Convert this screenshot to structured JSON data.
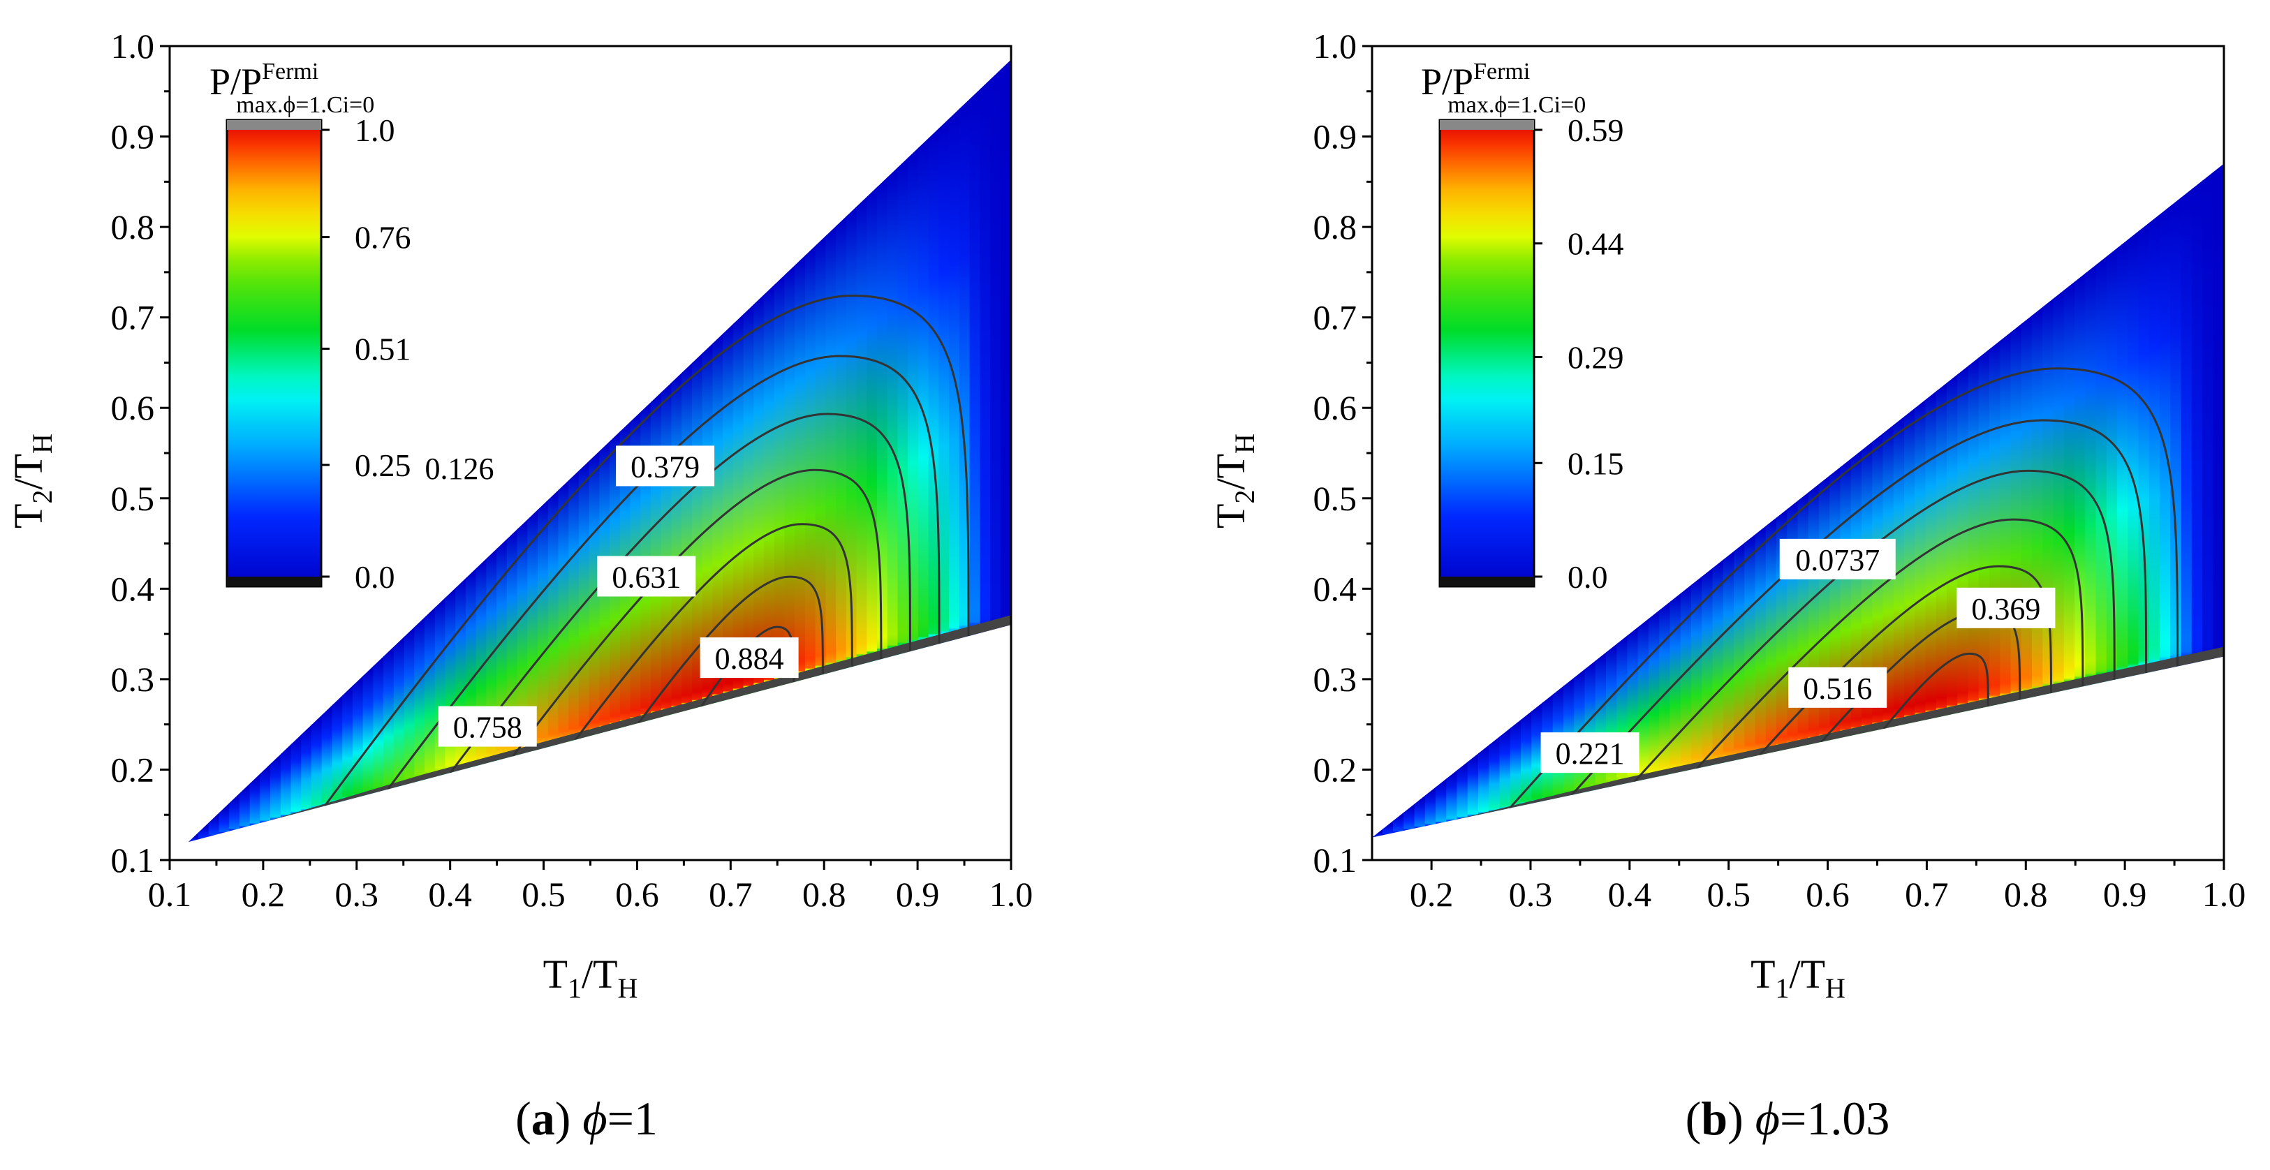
{
  "chart_data": [
    {
      "type": "heatmap",
      "panel_letter": "a",
      "caption_symbol": "ϕ",
      "caption_value": "=1",
      "phi": 1,
      "xlabel": "T1/TH",
      "xlabel_main": "T",
      "xlabel_sub1": "1",
      "xlabel_slash": "/T",
      "xlabel_sub2": "H",
      "ylabel": "T2/TH",
      "ylabel_main": "T",
      "ylabel_sub1": "2",
      "ylabel_slash": "/T",
      "ylabel_sub2": "H",
      "xlim": [
        0.1,
        1.0
      ],
      "ylim": [
        0.1,
        1.0
      ],
      "xticks": [
        "0.1",
        "0.2",
        "0.3",
        "0.4",
        "0.5",
        "0.6",
        "0.7",
        "0.8",
        "0.9",
        "1.0"
      ],
      "yticks": [
        "0.1",
        "0.2",
        "0.3",
        "0.4",
        "0.5",
        "0.6",
        "0.7",
        "0.8",
        "0.9",
        "1.0"
      ],
      "domain": {
        "upper_end_y": 0.985,
        "lower_start": [
          0.12,
          0.12
        ],
        "lower_end_y": 0.36
      },
      "peak": [
        0.71,
        0.3
      ],
      "colorbar": {
        "title_main": "P/P",
        "title_sup": "Fermi",
        "title_sub": "max.ϕ=1.Ci=0",
        "min": 0.0,
        "max": 1.0,
        "tick_labels": [
          "1.0",
          "0.76",
          "0.51",
          "0.25",
          "0.0"
        ],
        "tick_values": [
          1.0,
          0.76,
          0.51,
          0.25,
          0.0
        ]
      },
      "contour_labels": [
        {
          "text": "0.126",
          "x": 0.41,
          "y": 0.533
        },
        {
          "text": "0.379",
          "x": 0.63,
          "y": 0.535
        },
        {
          "text": "0.631",
          "x": 0.61,
          "y": 0.413
        },
        {
          "text": "0.884",
          "x": 0.72,
          "y": 0.323
        },
        {
          "text": "0.758",
          "x": 0.44,
          "y": 0.247
        }
      ],
      "contour_levels": [
        0.126,
        0.253,
        0.379,
        0.505,
        0.631,
        0.758,
        0.884
      ]
    },
    {
      "type": "heatmap",
      "panel_letter": "b",
      "caption_symbol": "ϕ",
      "caption_value": "=1.03",
      "phi": 1.03,
      "xlabel": "T1/TH",
      "xlabel_main": "T",
      "xlabel_sub1": "1",
      "xlabel_slash": "/T",
      "xlabel_sub2": "H",
      "ylabel": "T2/TH",
      "ylabel_main": "T",
      "ylabel_sub1": "2",
      "ylabel_slash": "/T",
      "ylabel_sub2": "H",
      "xlim": [
        0.14,
        1.0
      ],
      "ylim": [
        0.1,
        1.0
      ],
      "xticks": [
        "0.2",
        "0.3",
        "0.4",
        "0.5",
        "0.6",
        "0.7",
        "0.8",
        "0.9",
        "1.0"
      ],
      "yticks": [
        "0.1",
        "0.2",
        "0.3",
        "0.4",
        "0.5",
        "0.6",
        "0.7",
        "0.8",
        "0.9",
        "1.0"
      ],
      "domain": {
        "upper_end_y": 0.87,
        "lower_start": [
          0.14,
          0.125
        ],
        "lower_end_y": 0.325
      },
      "peak": [
        0.7,
        0.275
      ],
      "colorbar": {
        "title_main": "P/P",
        "title_sup": "Fermi",
        "title_sub": "max.ϕ=1.Ci=0",
        "min": 0.0,
        "max": 0.59,
        "tick_labels": [
          "0.59",
          "0.44",
          "0.29",
          "0.15",
          "0.0"
        ],
        "tick_values": [
          0.59,
          0.44,
          0.29,
          0.15,
          0.0
        ]
      },
      "contour_labels": [
        {
          "text": "0.0737",
          "x": 0.61,
          "y": 0.432
        },
        {
          "text": "0.369",
          "x": 0.78,
          "y": 0.378
        },
        {
          "text": "0.516",
          "x": 0.61,
          "y": 0.29
        },
        {
          "text": "0.221",
          "x": 0.36,
          "y": 0.218
        }
      ],
      "contour_levels": [
        0.0737,
        0.147,
        0.221,
        0.295,
        0.369,
        0.442,
        0.516
      ]
    }
  ]
}
